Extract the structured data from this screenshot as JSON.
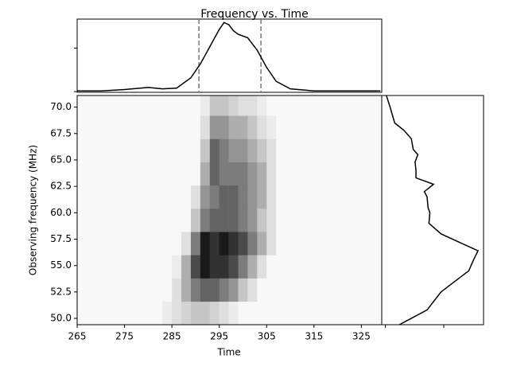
{
  "chart_data": {
    "type": "heatmap",
    "title": "Frequency vs. Time",
    "x_label": "Time",
    "y_label": "Observing frequency (MHz)",
    "xlim": [
      265,
      329.3
    ],
    "xticks": [
      265,
      275,
      285,
      295,
      305,
      315,
      325
    ],
    "ylim": [
      49.4,
      71.1
    ],
    "yticks": [
      {
        "value": 50,
        "label": "50.0"
      },
      {
        "value": 52.5,
        "label": "52.5"
      },
      {
        "value": 55,
        "label": "55.0"
      },
      {
        "value": 57.5,
        "label": "57.5"
      },
      {
        "value": 60,
        "label": "60.0"
      },
      {
        "value": 62.5,
        "label": "62.5"
      },
      {
        "value": 65,
        "label": "65.0"
      },
      {
        "value": 67.5,
        "label": "67.5"
      },
      {
        "value": 70,
        "label": "70.0"
      }
    ],
    "time_edges": [
      279,
      281,
      283,
      285,
      287,
      289,
      291,
      293,
      295,
      297,
      299,
      301,
      303,
      305,
      307,
      309,
      311
    ],
    "freq_edges": [
      49.4,
      51.6,
      53.8,
      56,
      58.2,
      60.4,
      62.6,
      64.8,
      67,
      69.2,
      71.1
    ],
    "z": [
      [
        0,
        0,
        0.05,
        0.1,
        0.15,
        0.2,
        0.2,
        0.15,
        0.1,
        0.05,
        0,
        0,
        0,
        0,
        0,
        0
      ],
      [
        0,
        0,
        0,
        0.1,
        0.3,
        0.5,
        0.6,
        0.6,
        0.5,
        0.4,
        0.2,
        0.1,
        0,
        0,
        0,
        0
      ],
      [
        0,
        0,
        0,
        0.05,
        0.3,
        0.7,
        0.9,
        0.8,
        0.8,
        0.7,
        0.5,
        0.3,
        0.1,
        0,
        0,
        0
      ],
      [
        0,
        0,
        0,
        0,
        0.1,
        0.5,
        0.9,
        0.8,
        0.9,
        0.8,
        0.7,
        0.5,
        0.3,
        0.1,
        0,
        0
      ],
      [
        0,
        0,
        0,
        0,
        0,
        0.2,
        0.5,
        0.6,
        0.6,
        0.6,
        0.5,
        0.4,
        0.2,
        0.1,
        0,
        0
      ],
      [
        0,
        0,
        0,
        0,
        0,
        0.1,
        0.4,
        0.5,
        0.6,
        0.6,
        0.5,
        0.4,
        0.3,
        0.1,
        0,
        0
      ],
      [
        0,
        0,
        0,
        0,
        0,
        0,
        0.3,
        0.6,
        0.5,
        0.5,
        0.5,
        0.4,
        0.3,
        0.1,
        0,
        0
      ],
      [
        0,
        0,
        0,
        0,
        0,
        0,
        0.2,
        0.6,
        0.5,
        0.4,
        0.4,
        0.3,
        0.2,
        0.1,
        0,
        0
      ],
      [
        0,
        0,
        0,
        0,
        0,
        0,
        0.1,
        0.4,
        0.4,
        0.3,
        0.3,
        0.2,
        0.1,
        0.05,
        0,
        0
      ],
      [
        0,
        0,
        0,
        0,
        0,
        0,
        0.05,
        0.2,
        0.2,
        0.15,
        0.1,
        0.1,
        0.05,
        0,
        0,
        0
      ]
    ],
    "time_profile": {
      "x": [
        265,
        270,
        275,
        280,
        283,
        286,
        289,
        291,
        293,
        295,
        296,
        297,
        298,
        299,
        301,
        303,
        305,
        307,
        310,
        315,
        329
      ],
      "values": [
        0.01,
        0.01,
        0.03,
        0.06,
        0.04,
        0.05,
        0.2,
        0.4,
        0.65,
        0.9,
        1.0,
        0.97,
        0.88,
        0.83,
        0.78,
        0.6,
        0.35,
        0.15,
        0.04,
        0.01,
        0.01
      ],
      "ylim": [
        -0.01,
        1.05
      ],
      "yticks": [
        0,
        0.63
      ],
      "markers": [
        290.7,
        303.8
      ],
      "color": "#000000"
    },
    "freq_profile": {
      "x": [
        49.4,
        50.8,
        52.5,
        53.5,
        54.5,
        55.5,
        56.4,
        57,
        58,
        59,
        60,
        60.5,
        61.5,
        62,
        62.7,
        63.3,
        64,
        64.8,
        65.5,
        66,
        67,
        67.8,
        68.5,
        70,
        71.1
      ],
      "values": [
        0.15,
        0.45,
        0.6,
        0.75,
        0.9,
        0.95,
        1.0,
        0.85,
        0.6,
        0.47,
        0.48,
        0.46,
        0.45,
        0.42,
        0.52,
        0.33,
        0.33,
        0.32,
        0.35,
        0.3,
        0.28,
        0.2,
        0.1,
        0.05,
        0.01
      ],
      "xlim": [
        -0.04,
        1.06
      ],
      "xticks": [
        0,
        0.63
      ],
      "color": "#000000"
    }
  }
}
